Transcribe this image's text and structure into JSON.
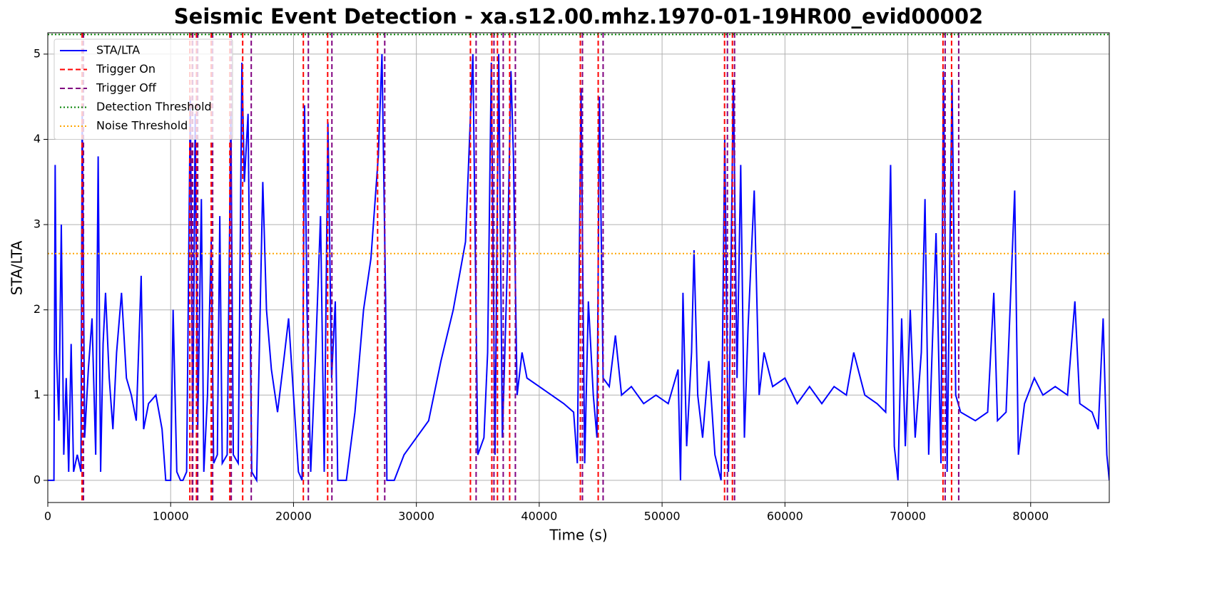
{
  "chart_data": {
    "type": "line",
    "title": "Seismic Event Detection - xa.s12.00.mhz.1970-01-19HR00_evid00002",
    "x_label": "Time (s)",
    "y_label": "STA/LTA",
    "xlim": [
      0,
      86400
    ],
    "ylim": [
      -0.26,
      5.25
    ],
    "xticks": [
      0,
      10000,
      20000,
      30000,
      40000,
      50000,
      60000,
      70000,
      80000
    ],
    "yticks": [
      0,
      1,
      2,
      3,
      4,
      5
    ],
    "grid": true,
    "legend": "upper left",
    "x": [
      0,
      500,
      600,
      700,
      900,
      1100,
      1300,
      1500,
      1700,
      1900,
      2100,
      2400,
      2700,
      2800,
      3000,
      3300,
      3600,
      3900,
      4100,
      4300,
      4500,
      4700,
      5000,
      5300,
      5600,
      6000,
      6400,
      6800,
      7200,
      7600,
      7800,
      8200,
      8800,
      9300,
      9600,
      10000,
      10200,
      10500,
      10800,
      11000,
      11300,
      11600,
      11800,
      12000,
      12200,
      12500,
      12700,
      13000,
      13300,
      13500,
      13800,
      14000,
      14200,
      14600,
      14900,
      15100,
      15500,
      15800,
      16000,
      16300,
      16600,
      17000,
      17500,
      17800,
      18200,
      18700,
      19200,
      19600,
      20000,
      20400,
      20700,
      20900,
      21100,
      21400,
      21800,
      22200,
      22500,
      22800,
      23100,
      23400,
      23600,
      24300,
      25000,
      25700,
      26300,
      26900,
      27200,
      27500,
      27600,
      28200,
      29000,
      30000,
      31000,
      32000,
      33000,
      34000,
      34600,
      35000,
      35500,
      35800,
      36100,
      36400,
      36700,
      37000,
      37400,
      37700,
      37900,
      38200,
      38600,
      39000,
      40000,
      41000,
      42000,
      42800,
      43100,
      43400,
      43700,
      44000,
      44400,
      44700,
      44900,
      45200,
      45700,
      46200,
      46700,
      47500,
      48500,
      49500,
      50500,
      51300,
      51500,
      51700,
      52000,
      52400,
      52600,
      52900,
      53300,
      53800,
      54300,
      54800,
      55100,
      55400,
      55800,
      56100,
      56400,
      56700,
      57000,
      57500,
      57900,
      58300,
      59000,
      60000,
      61000,
      62000,
      63000,
      64000,
      65000,
      65600,
      66500,
      67500,
      68200,
      68600,
      68900,
      69200,
      69500,
      69800,
      70200,
      70600,
      71100,
      71400,
      71700,
      72300,
      72700,
      72900,
      73200,
      73600,
      73900,
      74300,
      75500,
      76500,
      77000,
      77300,
      78000,
      78700,
      79000,
      79500,
      80300,
      81000,
      82000,
      83000,
      83600,
      84000,
      85000,
      85500,
      85900,
      86200,
      86400
    ],
    "series": [
      {
        "name": "STA/LTA",
        "color": "#0000ff",
        "values": [
          0,
          0,
          3.7,
          1.5,
          0.7,
          3.0,
          0.3,
          1.2,
          0.1,
          1.6,
          0.1,
          0.3,
          0.1,
          4.3,
          0.5,
          1.3,
          1.9,
          0.3,
          3.8,
          0.1,
          1.6,
          2.2,
          1.2,
          0.6,
          1.5,
          2.2,
          1.2,
          1.0,
          0.7,
          2.4,
          0.6,
          0.9,
          1.0,
          0.6,
          0.0,
          0.0,
          2.0,
          0.1,
          0.0,
          0.0,
          0.1,
          4.5,
          0.5,
          4.3,
          0.6,
          3.3,
          0.1,
          1.0,
          2.8,
          0.2,
          0.3,
          3.1,
          0.2,
          0.3,
          4.3,
          0.3,
          0.2,
          4.9,
          3.5,
          4.3,
          0.1,
          0.0,
          3.5,
          2.0,
          1.3,
          0.8,
          1.4,
          1.9,
          1.0,
          0.1,
          0.0,
          4.4,
          2.0,
          0.1,
          1.5,
          3.1,
          0.1,
          4.2,
          1.2,
          2.1,
          0.0,
          0.0,
          0.8,
          2.0,
          2.6,
          3.8,
          5.0,
          2.1,
          0.0,
          0.0,
          0.3,
          0.5,
          0.7,
          1.4,
          2.0,
          2.8,
          5.0,
          0.3,
          0.5,
          1.5,
          4.9,
          0.3,
          5.0,
          0.5,
          2.5,
          4.8,
          3.8,
          1.0,
          1.5,
          1.2,
          1.1,
          1.0,
          0.9,
          0.8,
          0.2,
          4.6,
          0.2,
          2.1,
          1.0,
          0.5,
          4.5,
          1.2,
          1.1,
          1.7,
          1.0,
          1.1,
          0.9,
          1.0,
          0.9,
          1.3,
          0.0,
          2.2,
          0.4,
          1.5,
          2.7,
          1.0,
          0.5,
          1.4,
          0.3,
          0.0,
          4.0,
          0.1,
          4.7,
          1.2,
          3.7,
          0.5,
          1.8,
          3.4,
          1.0,
          1.5,
          1.1,
          1.2,
          0.9,
          1.1,
          0.9,
          1.1,
          1.0,
          1.5,
          1.0,
          0.9,
          0.8,
          3.7,
          0.4,
          0.0,
          1.9,
          0.4,
          2.0,
          0.5,
          1.5,
          3.3,
          0.3,
          2.9,
          0.2,
          4.8,
          0.1,
          4.7,
          1.0,
          0.8,
          0.7,
          0.8,
          2.2,
          0.7,
          0.8,
          3.4,
          0.3,
          0.9,
          1.2,
          1.0,
          1.1,
          1.0,
          2.1,
          0.9,
          0.8,
          0.6,
          1.9,
          0.3,
          0.0
        ]
      }
    ],
    "trigger_on": {
      "name": "Trigger On",
      "color": "#ff0000",
      "x": [
        2790,
        11563,
        11750,
        12100,
        13300,
        14817,
        15863,
        20800,
        22780,
        26845,
        34400,
        36142,
        36600,
        37594,
        43347,
        44800,
        55085,
        55724,
        72865,
        73562
      ]
    },
    "trigger_off": {
      "name": "Trigger Off",
      "color": "#800080",
      "x": [
        2905,
        11795,
        12200,
        13420,
        14933,
        16560,
        21208,
        23125,
        27425,
        34863,
        36316,
        37070,
        38058,
        43520,
        45200,
        55317,
        55898,
        73039,
        74143
      ]
    },
    "thresholds": [
      {
        "name": "Detection Threshold",
        "color": "#008000",
        "value": 5.23
      },
      {
        "name": "Noise Threshold",
        "color": "#ffa500",
        "value": 2.66
      }
    ]
  }
}
